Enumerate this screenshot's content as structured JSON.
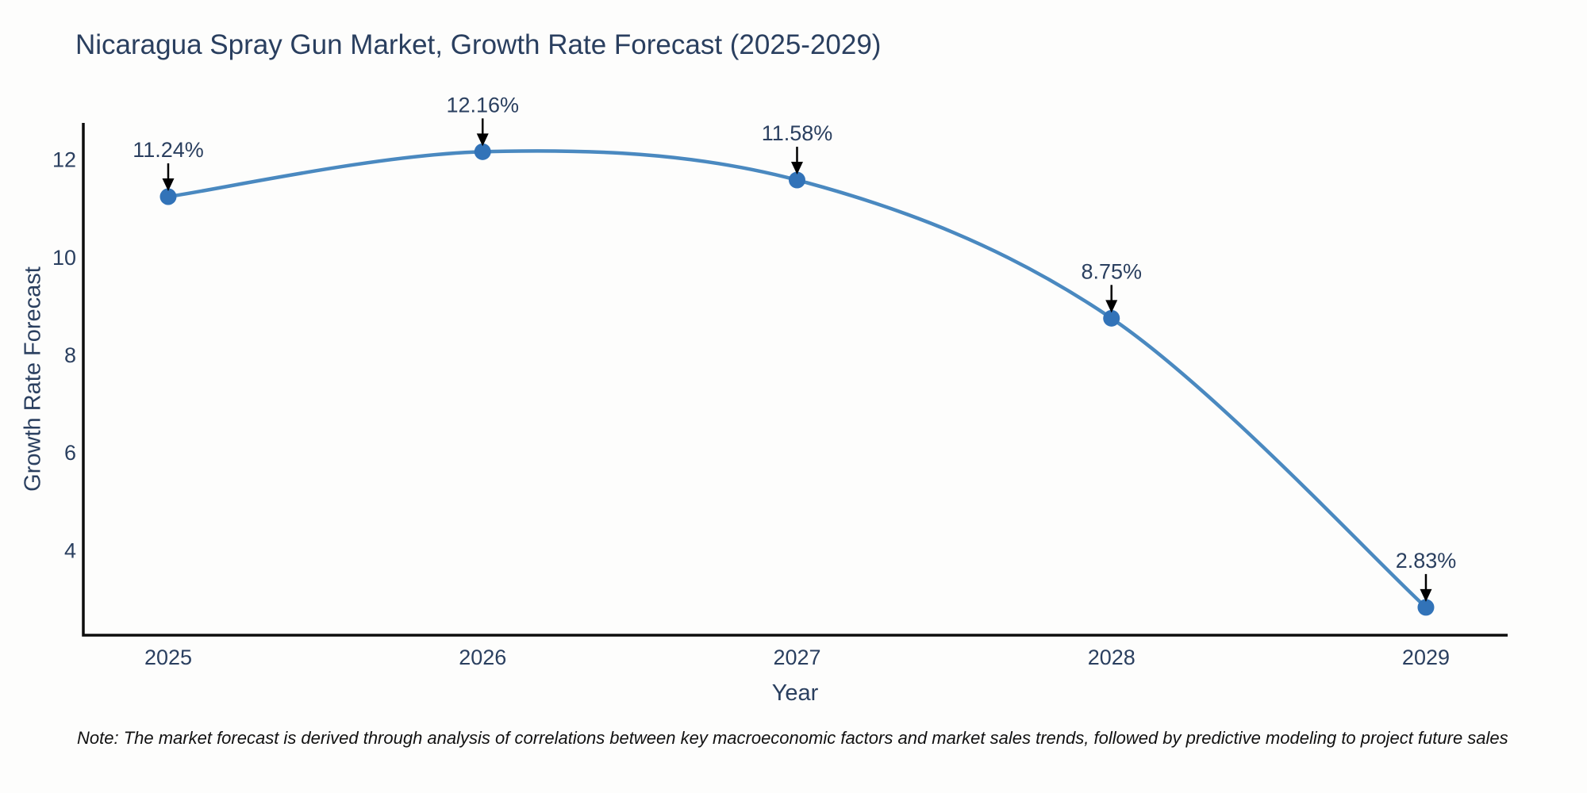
{
  "title": "Nicaragua Spray Gun Market, Growth Rate Forecast (2025-2029)",
  "note": "Note: The market forecast is derived through analysis of correlations between key macroeconomic factors and market sales trends, followed by predictive modeling to project future sales",
  "chart_data": {
    "type": "line",
    "title": "Nicaragua Spray Gun Market, Growth Rate Forecast (2025-2029)",
    "xlabel": "Year",
    "ylabel": "Growth Rate Forecast",
    "x": [
      2025,
      2026,
      2027,
      2028,
      2029
    ],
    "series": [
      {
        "name": "Growth Rate Forecast",
        "values": [
          11.24,
          12.16,
          11.58,
          8.75,
          2.83
        ]
      }
    ],
    "annotations": [
      "11.24%",
      "12.16%",
      "11.58%",
      "8.75%",
      "2.83%"
    ],
    "xticks": [
      "2025",
      "2026",
      "2027",
      "2028",
      "2029"
    ],
    "yticks": [
      4,
      6,
      8,
      10,
      12
    ],
    "xlim": [
      2024.73,
      2029.26
    ],
    "ylim": [
      2.26,
      12.75
    ],
    "line_shape": "spline",
    "grid": false,
    "legend": "none",
    "colors": {
      "line": "#4a89c0",
      "marker": "#3273b8",
      "axis": "#0d0d0d",
      "tick_text": "#2a3f5f",
      "annotation_text": "#2a3f5f",
      "arrow": "#000000",
      "background": "#fdfdfc"
    }
  }
}
